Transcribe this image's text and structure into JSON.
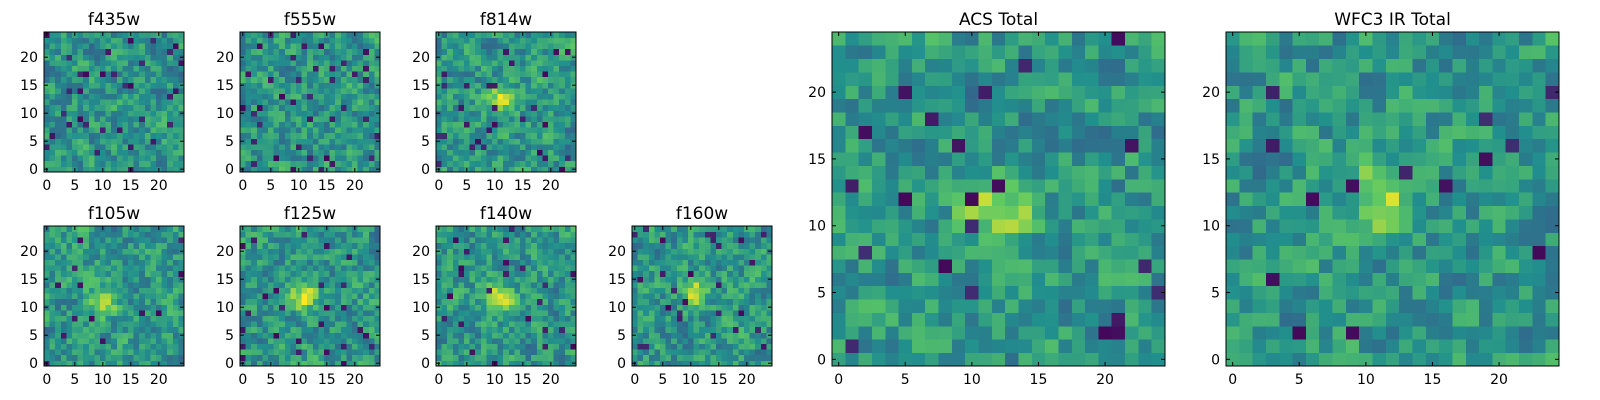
{
  "figure": {
    "colormap": [
      "#440154",
      "#3b528b",
      "#21908d",
      "#5dc863",
      "#fde725"
    ],
    "panel_border_color": "#000000",
    "background": "#ffffff"
  },
  "chart_data": [
    {
      "type": "heatmap",
      "title": "f435w",
      "grid": [
        25,
        25
      ],
      "xlim": [
        -0.5,
        24.5
      ],
      "ylim": [
        -0.5,
        24.5
      ],
      "xticks": [
        0,
        5,
        10,
        15,
        20
      ],
      "yticks": [
        0,
        5,
        10,
        15,
        20
      ],
      "xlabel": "",
      "ylabel": "",
      "bright_center": null,
      "noise_seed": 11,
      "dark_pixel_rate": 0.06
    },
    {
      "type": "heatmap",
      "title": "f555w",
      "grid": [
        25,
        25
      ],
      "xlim": [
        -0.5,
        24.5
      ],
      "ylim": [
        -0.5,
        24.5
      ],
      "xticks": [
        0,
        5,
        10,
        15,
        20
      ],
      "yticks": [
        0,
        5,
        10,
        15,
        20
      ],
      "xlabel": "",
      "ylabel": "",
      "bright_center": null,
      "noise_seed": 23,
      "dark_pixel_rate": 0.06
    },
    {
      "type": "heatmap",
      "title": "f814w",
      "grid": [
        25,
        25
      ],
      "xlim": [
        -0.5,
        24.5
      ],
      "ylim": [
        -0.5,
        24.5
      ],
      "xticks": [
        0,
        5,
        10,
        15,
        20
      ],
      "yticks": [
        0,
        5,
        10,
        15,
        20
      ],
      "xlabel": "",
      "ylabel": "",
      "bright_center": [
        11,
        12
      ],
      "noise_seed": 37,
      "dark_pixel_rate": 0.04
    },
    {
      "type": "heatmap",
      "title": "f105w",
      "grid": [
        25,
        25
      ],
      "xlim": [
        -0.5,
        24.5
      ],
      "ylim": [
        -0.5,
        24.5
      ],
      "xticks": [
        0,
        5,
        10,
        15,
        20
      ],
      "yticks": [
        0,
        5,
        10,
        15,
        20
      ],
      "xlabel": "",
      "ylabel": "",
      "bright_center": [
        10,
        11
      ],
      "noise_seed": 41,
      "dark_pixel_rate": 0.03
    },
    {
      "type": "heatmap",
      "title": "f125w",
      "grid": [
        25,
        25
      ],
      "xlim": [
        -0.5,
        24.5
      ],
      "ylim": [
        -0.5,
        24.5
      ],
      "xticks": [
        0,
        5,
        10,
        15,
        20
      ],
      "yticks": [
        0,
        5,
        10,
        15,
        20
      ],
      "xlabel": "",
      "ylabel": "",
      "bright_center": [
        11,
        12
      ],
      "noise_seed": 53,
      "dark_pixel_rate": 0.03
    },
    {
      "type": "heatmap",
      "title": "f140w",
      "grid": [
        25,
        25
      ],
      "xlim": [
        -0.5,
        24.5
      ],
      "ylim": [
        -0.5,
        24.5
      ],
      "xticks": [
        0,
        5,
        10,
        15,
        20
      ],
      "yticks": [
        0,
        5,
        10,
        15,
        20
      ],
      "xlabel": "",
      "ylabel": "",
      "bright_center": [
        11,
        12
      ],
      "noise_seed": 67,
      "dark_pixel_rate": 0.03
    },
    {
      "type": "heatmap",
      "title": "f160w",
      "grid": [
        25,
        25
      ],
      "xlim": [
        -0.5,
        24.5
      ],
      "ylim": [
        -0.5,
        24.5
      ],
      "xticks": [
        0,
        5,
        10,
        15,
        20
      ],
      "yticks": [
        0,
        5,
        10,
        15,
        20
      ],
      "xlabel": "",
      "ylabel": "",
      "bright_center": [
        11,
        13
      ],
      "noise_seed": 79,
      "dark_pixel_rate": 0.04
    },
    {
      "type": "heatmap",
      "title": "ACS Total",
      "grid": [
        25,
        25
      ],
      "xlim": [
        -0.5,
        24.5
      ],
      "ylim": [
        -0.5,
        24.5
      ],
      "xticks": [
        0,
        5,
        10,
        15,
        20
      ],
      "yticks": [
        0,
        5,
        10,
        15,
        20
      ],
      "xlabel": "",
      "ylabel": "",
      "bright_center": [
        12,
        11
      ],
      "noise_seed": 97,
      "dark_pixel_rate": 0.04
    },
    {
      "type": "heatmap",
      "title": "WFC3 IR Total",
      "grid": [
        25,
        25
      ],
      "xlim": [
        -0.5,
        24.5
      ],
      "ylim": [
        -0.5,
        24.5
      ],
      "xticks": [
        0,
        5,
        10,
        15,
        20
      ],
      "yticks": [
        0,
        5,
        10,
        15,
        20
      ],
      "xlabel": "",
      "ylabel": "",
      "bright_center": [
        11,
        12
      ],
      "noise_seed": 113,
      "dark_pixel_rate": 0.03
    }
  ]
}
